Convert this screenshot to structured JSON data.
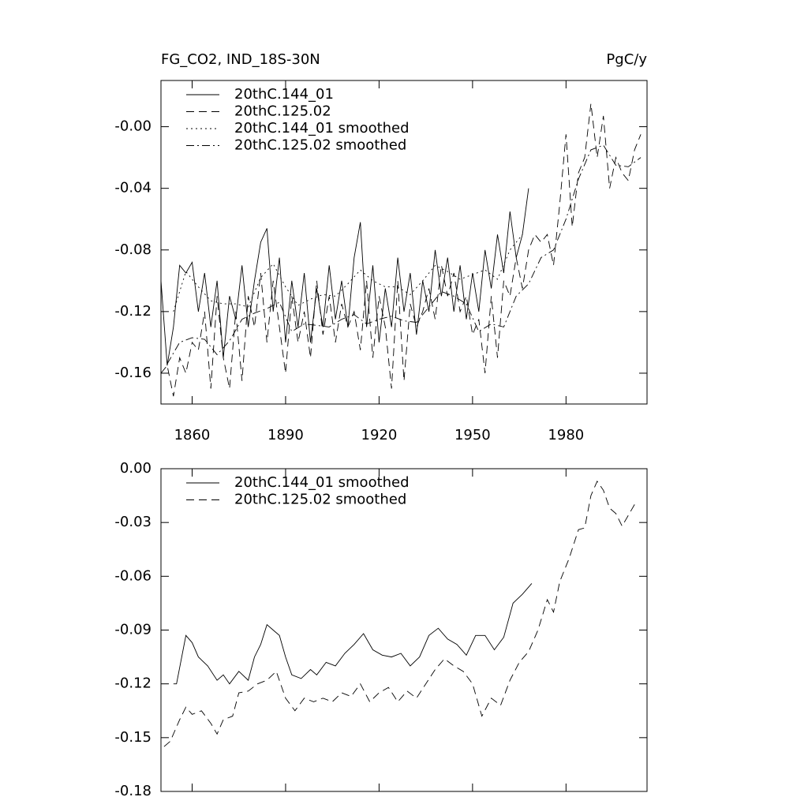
{
  "chart_data": [
    {
      "type": "line",
      "title": "FG_CO2, IND_18S-30N",
      "units": "PgC/y",
      "xlim": [
        1850,
        2006
      ],
      "xticks": [
        1860,
        1890,
        1920,
        1950,
        1980
      ],
      "xtick_labels": true,
      "ylim": [
        -0.18,
        0.03
      ],
      "yticks": [
        {
          "value": 0,
          "label": "-0.00"
        },
        -0.04,
        -0.08,
        -0.12,
        -0.16
      ],
      "series": [
        {
          "name": "20thC.144_01",
          "color": "#000000",
          "dash": "solid",
          "x": [
            1850,
            1852,
            1854,
            1856,
            1858,
            1860,
            1862,
            1864,
            1866,
            1868,
            1870,
            1872,
            1874,
            1876,
            1878,
            1880,
            1882,
            1884,
            1886,
            1888,
            1890,
            1892,
            1894,
            1896,
            1898,
            1900,
            1902,
            1904,
            1906,
            1908,
            1910,
            1912,
            1914,
            1916,
            1918,
            1920,
            1922,
            1924,
            1926,
            1928,
            1930,
            1932,
            1934,
            1936,
            1938,
            1940,
            1942,
            1944,
            1946,
            1948,
            1950,
            1952,
            1954,
            1956,
            1958,
            1960,
            1962,
            1964,
            1966,
            1968
          ],
          "values": [
            -0.1,
            -0.155,
            -0.13,
            -0.09,
            -0.095,
            -0.088,
            -0.12,
            -0.095,
            -0.13,
            -0.1,
            -0.15,
            -0.11,
            -0.125,
            -0.09,
            -0.13,
            -0.1,
            -0.075,
            -0.066,
            -0.12,
            -0.085,
            -0.14,
            -0.1,
            -0.13,
            -0.095,
            -0.14,
            -0.105,
            -0.13,
            -0.09,
            -0.125,
            -0.1,
            -0.13,
            -0.085,
            -0.062,
            -0.13,
            -0.09,
            -0.14,
            -0.105,
            -0.13,
            -0.085,
            -0.12,
            -0.095,
            -0.135,
            -0.1,
            -0.12,
            -0.08,
            -0.11,
            -0.085,
            -0.12,
            -0.09,
            -0.125,
            -0.095,
            -0.12,
            -0.08,
            -0.105,
            -0.07,
            -0.095,
            -0.055,
            -0.085,
            -0.07,
            -0.04
          ]
        },
        {
          "name": "20thC.125.02",
          "color": "#000000",
          "dash": "dashed",
          "x": [
            1850,
            1852,
            1854,
            1856,
            1858,
            1860,
            1862,
            1864,
            1866,
            1868,
            1870,
            1872,
            1874,
            1876,
            1878,
            1880,
            1882,
            1884,
            1886,
            1888,
            1890,
            1892,
            1894,
            1896,
            1898,
            1900,
            1902,
            1904,
            1906,
            1908,
            1910,
            1912,
            1914,
            1916,
            1918,
            1920,
            1922,
            1924,
            1926,
            1928,
            1930,
            1932,
            1934,
            1936,
            1938,
            1940,
            1942,
            1944,
            1946,
            1948,
            1950,
            1952,
            1954,
            1956,
            1958,
            1960,
            1962,
            1964,
            1966,
            1968,
            1970,
            1972,
            1974,
            1976,
            1978,
            1980,
            1982,
            1984,
            1986,
            1988,
            1990,
            1992,
            1994,
            1996,
            1998,
            2000,
            2002,
            2004
          ],
          "values": [
            -0.16,
            -0.155,
            -0.175,
            -0.15,
            -0.16,
            -0.14,
            -0.145,
            -0.12,
            -0.17,
            -0.11,
            -0.15,
            -0.17,
            -0.12,
            -0.165,
            -0.11,
            -0.13,
            -0.095,
            -0.14,
            -0.1,
            -0.13,
            -0.16,
            -0.11,
            -0.14,
            -0.12,
            -0.15,
            -0.1,
            -0.135,
            -0.11,
            -0.14,
            -0.115,
            -0.13,
            -0.12,
            -0.145,
            -0.1,
            -0.15,
            -0.11,
            -0.13,
            -0.17,
            -0.1,
            -0.165,
            -0.115,
            -0.13,
            -0.12,
            -0.105,
            -0.125,
            -0.09,
            -0.11,
            -0.095,
            -0.12,
            -0.11,
            -0.135,
            -0.125,
            -0.16,
            -0.11,
            -0.15,
            -0.1,
            -0.11,
            -0.085,
            -0.105,
            -0.08,
            -0.07,
            -0.075,
            -0.07,
            -0.09,
            -0.05,
            -0.005,
            -0.065,
            -0.03,
            -0.02,
            0.015,
            -0.02,
            0.007,
            -0.04,
            -0.02,
            -0.03,
            -0.035,
            -0.015,
            -0.005
          ]
        },
        {
          "name": "20thC.144_01 smoothed",
          "color": "#000000",
          "dash": "dotted",
          "x": [
            1854,
            1858,
            1862,
            1866,
            1870,
            1874,
            1878,
            1882,
            1886,
            1890,
            1894,
            1898,
            1902,
            1906,
            1910,
            1914,
            1918,
            1922,
            1926,
            1930,
            1934,
            1938,
            1942,
            1946,
            1950,
            1954,
            1958,
            1962,
            1966
          ],
          "values": [
            -0.12,
            -0.094,
            -0.104,
            -0.113,
            -0.115,
            -0.115,
            -0.117,
            -0.098,
            -0.089,
            -0.104,
            -0.116,
            -0.112,
            -0.109,
            -0.11,
            -0.102,
            -0.093,
            -0.1,
            -0.104,
            -0.104,
            -0.109,
            -0.1,
            -0.09,
            -0.094,
            -0.099,
            -0.096,
            -0.093,
            -0.099,
            -0.08,
            -0.07
          ]
        },
        {
          "name": "20thC.125.02 smoothed",
          "color": "#000000",
          "dash": "dashdot",
          "x": [
            1852,
            1856,
            1860,
            1864,
            1868,
            1872,
            1876,
            1880,
            1884,
            1888,
            1892,
            1896,
            1900,
            1904,
            1908,
            1912,
            1916,
            1920,
            1924,
            1928,
            1932,
            1936,
            1940,
            1944,
            1948,
            1952,
            1956,
            1960,
            1964,
            1968,
            1972,
            1976,
            1980,
            1984,
            1988,
            1992,
            1996,
            2000,
            2004
          ],
          "values": [
            -0.154,
            -0.14,
            -0.137,
            -0.138,
            -0.148,
            -0.139,
            -0.125,
            -0.121,
            -0.118,
            -0.114,
            -0.133,
            -0.128,
            -0.129,
            -0.13,
            -0.125,
            -0.122,
            -0.128,
            -0.125,
            -0.123,
            -0.126,
            -0.127,
            -0.117,
            -0.107,
            -0.11,
            -0.115,
            -0.133,
            -0.128,
            -0.13,
            -0.11,
            -0.102,
            -0.085,
            -0.08,
            -0.06,
            -0.034,
            -0.015,
            -0.012,
            -0.025,
            -0.026,
            -0.02
          ]
        }
      ]
    },
    {
      "type": "line",
      "xlim": [
        1850,
        2006
      ],
      "xticks": [
        1860,
        1890,
        1920,
        1950,
        1980
      ],
      "xtick_labels": false,
      "ylim": [
        -0.18,
        0
      ],
      "yticks": [
        {
          "value": 0,
          "label": "0.00"
        },
        -0.03,
        -0.06,
        -0.09,
        -0.12,
        -0.15,
        -0.18
      ],
      "series": [
        {
          "name": "20thC.144_01 smoothed",
          "color": "#000000",
          "dash": "solid",
          "x": [
            1854,
            1855,
            1858,
            1860,
            1862,
            1865,
            1868,
            1870,
            1872,
            1875,
            1878,
            1880,
            1882,
            1884,
            1886,
            1888,
            1890,
            1892,
            1895,
            1898,
            1900,
            1903,
            1906,
            1909,
            1912,
            1915,
            1918,
            1921,
            1924,
            1927,
            1930,
            1933,
            1936,
            1939,
            1942,
            1945,
            1948,
            1951,
            1954,
            1957,
            1960,
            1963,
            1966,
            1969
          ],
          "values": [
            -0.12,
            -0.12,
            -0.093,
            -0.097,
            -0.105,
            -0.11,
            -0.118,
            -0.115,
            -0.12,
            -0.113,
            -0.118,
            -0.105,
            -0.098,
            -0.087,
            -0.09,
            -0.093,
            -0.105,
            -0.115,
            -0.117,
            -0.112,
            -0.115,
            -0.108,
            -0.11,
            -0.103,
            -0.098,
            -0.092,
            -0.101,
            -0.104,
            -0.105,
            -0.103,
            -0.11,
            -0.105,
            -0.093,
            -0.089,
            -0.095,
            -0.098,
            -0.104,
            -0.093,
            -0.093,
            -0.101,
            -0.094,
            -0.075,
            -0.07,
            -0.064
          ]
        },
        {
          "name": "20thC.125.02 smoothed",
          "color": "#000000",
          "dash": "dashed",
          "x": [
            1851,
            1853,
            1856,
            1858,
            1860,
            1863,
            1866,
            1868,
            1870,
            1873,
            1875,
            1878,
            1881,
            1884,
            1887,
            1890,
            1893,
            1896,
            1899,
            1902,
            1905,
            1908,
            1911,
            1914,
            1917,
            1920,
            1923,
            1926,
            1929,
            1932,
            1935,
            1938,
            1941,
            1944,
            1947,
            1950,
            1953,
            1956,
            1959,
            1962,
            1965,
            1968,
            1971,
            1974,
            1976,
            1978,
            1981,
            1984,
            1986,
            1988,
            1990,
            1992,
            1994,
            1996,
            1998,
            2000,
            2002
          ],
          "values": [
            -0.155,
            -0.152,
            -0.14,
            -0.133,
            -0.137,
            -0.135,
            -0.142,
            -0.148,
            -0.14,
            -0.138,
            -0.125,
            -0.124,
            -0.12,
            -0.118,
            -0.113,
            -0.128,
            -0.135,
            -0.128,
            -0.13,
            -0.128,
            -0.13,
            -0.125,
            -0.127,
            -0.12,
            -0.13,
            -0.125,
            -0.122,
            -0.13,
            -0.124,
            -0.128,
            -0.12,
            -0.112,
            -0.106,
            -0.11,
            -0.113,
            -0.12,
            -0.138,
            -0.128,
            -0.132,
            -0.118,
            -0.108,
            -0.102,
            -0.09,
            -0.073,
            -0.08,
            -0.063,
            -0.05,
            -0.034,
            -0.033,
            -0.015,
            -0.007,
            -0.012,
            -0.022,
            -0.025,
            -0.032,
            -0.026,
            -0.02
          ]
        }
      ]
    }
  ]
}
